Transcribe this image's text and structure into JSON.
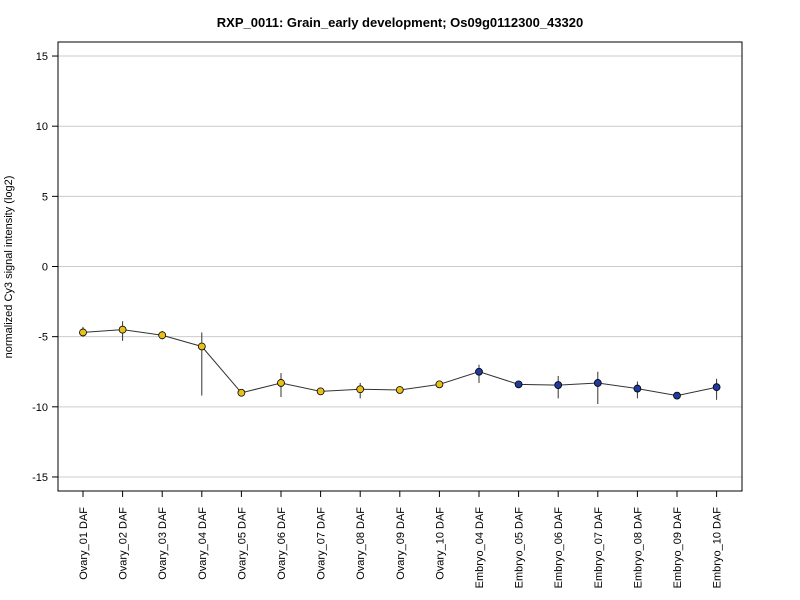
{
  "chart_data": {
    "type": "line",
    "title": "RXP_0011: Grain_early development; Os09g0112300_43320",
    "xlabel": "",
    "ylabel": "normalized Cy3 signal intensity (log2)",
    "ylim": [
      -16,
      16
    ],
    "yticks": [
      -15,
      -10,
      -5,
      0,
      5,
      10,
      15
    ],
    "grid": true,
    "categories": [
      "Ovary_01 DAF",
      "Ovary_02 DAF",
      "Ovary_03 DAF",
      "Ovary_04 DAF",
      "Ovary_05 DAF",
      "Ovary_06 DAF",
      "Ovary_07 DAF",
      "Ovary_08 DAF",
      "Ovary_09 DAF",
      "Ovary_10 DAF",
      "Embryo_04 DAF",
      "Embryo_05 DAF",
      "Embryo_06 DAF",
      "Embryo_07 DAF",
      "Embryo_08 DAF",
      "Embryo_09 DAF",
      "Embryo_10 DAF"
    ],
    "values": [
      -4.7,
      -4.5,
      -4.9,
      -5.7,
      -9.0,
      -8.3,
      -8.9,
      -8.75,
      -8.8,
      -8.4,
      -7.5,
      -8.4,
      -8.45,
      -8.3,
      -8.7,
      -9.2,
      -8.6
    ],
    "err_low": [
      -5.0,
      -5.3,
      -5.2,
      -9.2,
      -9.2,
      -9.3,
      -9.1,
      -9.4,
      -9.0,
      -8.6,
      -8.3,
      -8.6,
      -9.4,
      -9.8,
      -9.4,
      -9.3,
      -9.5
    ],
    "err_high": [
      -4.3,
      -3.9,
      -4.6,
      -4.7,
      -8.8,
      -7.6,
      -8.7,
      -8.3,
      -8.6,
      -8.2,
      -7.0,
      -8.2,
      -7.8,
      -7.5,
      -8.2,
      -9.1,
      -8.0
    ],
    "point_colors": [
      "#e8c01a",
      "#e8c01a",
      "#e8c01a",
      "#e8c01a",
      "#e8c01a",
      "#e8c01a",
      "#e8c01a",
      "#e8c01a",
      "#e8c01a",
      "#e8c01a",
      "#1f3b9c",
      "#1f3b9c",
      "#1f3b9c",
      "#1f3b9c",
      "#1f3b9c",
      "#1f3b9c",
      "#1f3b9c"
    ],
    "line_color": "#333333",
    "grid_color": "#cccccc"
  }
}
